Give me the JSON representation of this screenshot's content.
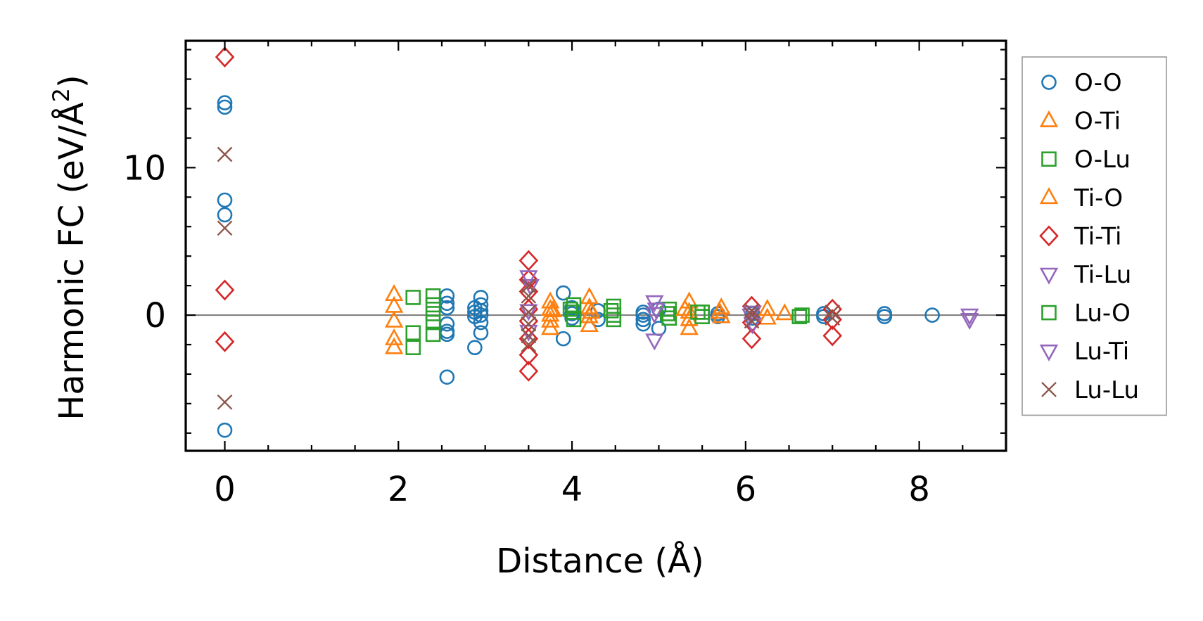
{
  "chart_data": {
    "type": "scatter",
    "xlabel": "Distance (Å)",
    "ylabel": "Harmonic FC (eV/Å",
    "ylabel_superscript": "2",
    "ylabel_suffix": ")",
    "xlim": [
      -0.45,
      9.0
    ],
    "ylim": [
      -9.2,
      18.6
    ],
    "x_ticks": [
      0,
      2,
      4,
      6,
      8
    ],
    "x_tick_labels": [
      "0",
      "2",
      "4",
      "6",
      "8"
    ],
    "y_ticks": [
      0,
      10
    ],
    "y_tick_labels": [
      "0",
      "10"
    ],
    "x_minor_step": 0.5,
    "y_minor_step": 2,
    "zero_line": true,
    "grid": false,
    "legend_position": "outside-right",
    "colors": {
      "blue": "#1f77b4",
      "orange": "#ff7f0e",
      "green": "#2ca02c",
      "red": "#d62728",
      "purple": "#9467bd",
      "brown": "#8c564b",
      "zero_line": "#808080",
      "legend_border": "#999999"
    },
    "series": [
      {
        "name": "O-O",
        "marker": "circle",
        "color": "#1f77b4",
        "points": [
          [
            0,
            14.4
          ],
          [
            0,
            14.1
          ],
          [
            0,
            7.8
          ],
          [
            0,
            6.8
          ],
          [
            0,
            -7.8
          ],
          [
            2.56,
            1.3
          ],
          [
            2.56,
            0.8
          ],
          [
            2.56,
            0.5
          ],
          [
            2.56,
            -0.6
          ],
          [
            2.56,
            -1.1
          ],
          [
            2.56,
            -1.3
          ],
          [
            2.56,
            -4.2
          ],
          [
            2.88,
            0.5
          ],
          [
            2.88,
            0.2
          ],
          [
            2.88,
            -0.1
          ],
          [
            2.88,
            -2.2
          ],
          [
            2.95,
            1.2
          ],
          [
            2.95,
            0.7
          ],
          [
            2.95,
            0.3
          ],
          [
            2.95,
            0.0
          ],
          [
            2.95,
            -0.5
          ],
          [
            2.95,
            -1.2
          ],
          [
            3.9,
            1.5
          ],
          [
            3.9,
            -1.6
          ],
          [
            4.0,
            0.5
          ],
          [
            4.0,
            0.1
          ],
          [
            4.0,
            -0.2
          ],
          [
            4.3,
            0.3
          ],
          [
            4.3,
            -0.3
          ],
          [
            4.82,
            0.2
          ],
          [
            4.82,
            0.0
          ],
          [
            4.82,
            -0.3
          ],
          [
            4.82,
            -0.6
          ],
          [
            5.0,
            0.4
          ],
          [
            5.0,
            -0.9
          ],
          [
            5.68,
            0.1
          ],
          [
            5.68,
            -0.1
          ],
          [
            6.08,
            0.1
          ],
          [
            6.08,
            -0.2
          ],
          [
            6.9,
            0.1
          ],
          [
            6.9,
            -0.1
          ],
          [
            7.6,
            0.1
          ],
          [
            7.6,
            -0.1
          ],
          [
            8.15,
            0.0
          ]
        ]
      },
      {
        "name": "O-Ti",
        "marker": "triangle-up",
        "color": "#ff7f0e",
        "points": [
          [
            1.95,
            1.4
          ],
          [
            1.95,
            0.6
          ],
          [
            1.95,
            -0.4
          ],
          [
            1.95,
            -1.6
          ],
          [
            1.95,
            -2.2
          ],
          [
            3.75,
            0.9
          ],
          [
            3.75,
            0.4
          ],
          [
            3.75,
            0.0
          ],
          [
            3.75,
            -0.4
          ],
          [
            3.75,
            -0.9
          ],
          [
            4.2,
            1.2
          ],
          [
            4.2,
            0.5
          ],
          [
            4.2,
            -0.1
          ],
          [
            4.2,
            -0.7
          ],
          [
            5.35,
            0.9
          ],
          [
            5.35,
            0.2
          ],
          [
            5.35,
            -0.3
          ],
          [
            5.35,
            -0.9
          ],
          [
            5.72,
            0.5
          ],
          [
            5.72,
            -0.1
          ],
          [
            6.25,
            0.4
          ],
          [
            6.25,
            -0.2
          ],
          [
            6.45,
            0.1
          ]
        ]
      },
      {
        "name": "O-Lu",
        "marker": "square",
        "color": "#2ca02c",
        "points": [
          [
            2.17,
            1.2
          ],
          [
            2.17,
            -1.2
          ],
          [
            2.17,
            -2.2
          ],
          [
            2.4,
            1.3
          ],
          [
            2.4,
            0.7
          ],
          [
            2.4,
            0.1
          ],
          [
            2.4,
            -0.5
          ],
          [
            2.4,
            -1.3
          ],
          [
            4.02,
            0.7
          ],
          [
            4.02,
            0.2
          ],
          [
            4.02,
            -0.3
          ],
          [
            4.48,
            0.6
          ],
          [
            4.48,
            0.0
          ],
          [
            4.48,
            -0.3
          ],
          [
            5.12,
            0.4
          ],
          [
            5.12,
            -0.2
          ],
          [
            5.5,
            0.2
          ],
          [
            5.5,
            -0.1
          ],
          [
            6.65,
            0.0
          ]
        ]
      },
      {
        "name": "Ti-O",
        "marker": "triangle-up",
        "color": "#ff7f0e",
        "points": [
          [
            3.78,
            0.3
          ],
          [
            4.22,
            0.2
          ],
          [
            5.3,
            0.4
          ],
          [
            5.7,
            0.2
          ]
        ]
      },
      {
        "name": "Ti-Ti",
        "marker": "diamond",
        "color": "#d62728",
        "points": [
          [
            0,
            17.5
          ],
          [
            0,
            1.7
          ],
          [
            0,
            -1.8
          ],
          [
            3.5,
            3.7
          ],
          [
            3.5,
            2.4
          ],
          [
            3.5,
            1.6
          ],
          [
            3.5,
            0.4
          ],
          [
            3.5,
            -0.4
          ],
          [
            3.5,
            -1.6
          ],
          [
            3.5,
            -2.7
          ],
          [
            3.5,
            -3.8
          ],
          [
            6.07,
            0.6
          ],
          [
            6.07,
            -0.5
          ],
          [
            6.07,
            -1.6
          ],
          [
            7.0,
            0.4
          ],
          [
            7.0,
            -0.3
          ],
          [
            7.0,
            -1.4
          ]
        ]
      },
      {
        "name": "Ti-Lu",
        "marker": "triangle-down",
        "color": "#9467bd",
        "points": [
          [
            3.5,
            2.6
          ],
          [
            3.5,
            0.3
          ],
          [
            3.5,
            -1.1
          ],
          [
            4.95,
            0.9
          ],
          [
            4.95,
            0.1
          ],
          [
            4.95,
            -1.7
          ],
          [
            6.08,
            0.2
          ],
          [
            6.08,
            -0.6
          ],
          [
            8.58,
            0.0
          ],
          [
            8.58,
            -0.3
          ]
        ]
      },
      {
        "name": "Lu-O",
        "marker": "square",
        "color": "#2ca02c",
        "points": [
          [
            3.98,
            0.4
          ],
          [
            4.45,
            0.3
          ],
          [
            5.1,
            0.1
          ],
          [
            5.45,
            0.2
          ],
          [
            6.62,
            -0.1
          ]
        ]
      },
      {
        "name": "Lu-Ti",
        "marker": "triangle-down",
        "color": "#9467bd",
        "points": [
          [
            3.52,
            2.0
          ],
          [
            4.97,
            0.4
          ],
          [
            6.06,
            0.0
          ]
        ]
      },
      {
        "name": "Lu-Lu",
        "marker": "cross",
        "color": "#8c564b",
        "points": [
          [
            0,
            10.9
          ],
          [
            0,
            5.9
          ],
          [
            0,
            -5.9
          ],
          [
            3.5,
            2.0
          ],
          [
            3.5,
            1.3
          ],
          [
            3.5,
            0.2
          ],
          [
            3.5,
            -0.6
          ],
          [
            3.5,
            -1.4
          ],
          [
            3.5,
            -2.0
          ],
          [
            6.07,
            0.3
          ],
          [
            6.07,
            0.0
          ],
          [
            6.07,
            -0.4
          ],
          [
            7.0,
            0.2
          ],
          [
            7.0,
            -0.2
          ]
        ]
      }
    ]
  }
}
